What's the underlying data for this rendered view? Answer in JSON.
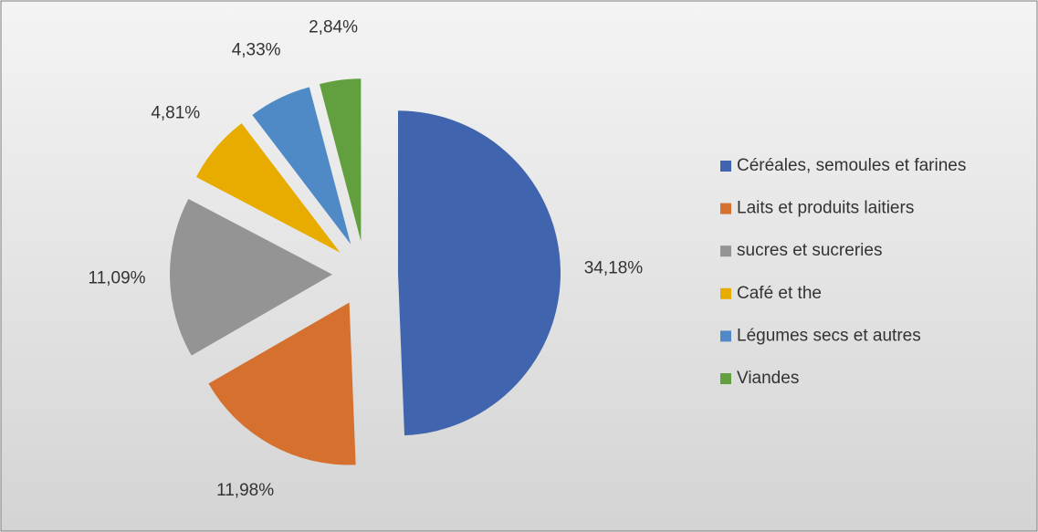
{
  "chart_data": {
    "type": "pie",
    "categories": [
      "Céréales, semoules et farines",
      "Laits et produits laitiers",
      "sucres et sucreries",
      "Café et the",
      "Légumes secs et autres",
      "Viandes"
    ],
    "values": [
      34.18,
      11.98,
      11.09,
      4.81,
      4.33,
      2.84
    ],
    "value_labels": [
      "34,18%",
      "11,98%",
      "11,09%",
      "4,81%",
      "4,33%",
      "2,84%"
    ],
    "colors": [
      "#4064ad",
      "#d5702e",
      "#949494",
      "#e8ac00",
      "#4f8ac6",
      "#62a03f"
    ],
    "legend": "right"
  }
}
